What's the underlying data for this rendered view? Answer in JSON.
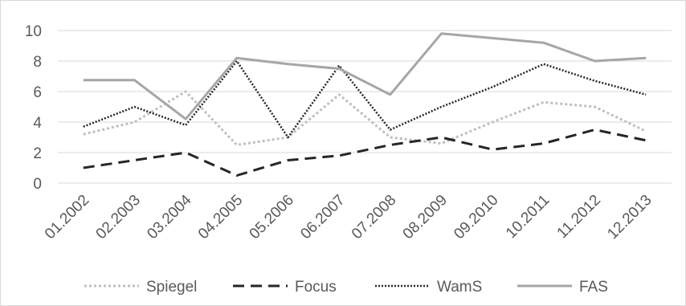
{
  "chart_data": {
    "type": "line",
    "title": "",
    "xlabel": "",
    "ylabel": "",
    "ylim": [
      0,
      10
    ],
    "yticks": [
      0,
      2,
      4,
      6,
      8,
      10
    ],
    "grid": "horizontal",
    "legend_position": "bottom",
    "categories": [
      "01.2002",
      "02.2003",
      "03.2004",
      "04.2005",
      "05.2006",
      "06.2007",
      "07.2008",
      "08.2009",
      "09.2010",
      "10.2011",
      "11.2012",
      "12.2013"
    ],
    "series": [
      {
        "name": "Spiegel",
        "color": "#bfbfbf",
        "style": "dotted",
        "values": [
          3.2,
          4.0,
          6.0,
          2.5,
          3.0,
          5.8,
          3.0,
          2.6,
          4.0,
          5.3,
          5.0,
          3.4
        ]
      },
      {
        "name": "Focus",
        "color": "#262626",
        "style": "dashed",
        "values": [
          1.0,
          1.5,
          2.0,
          0.5,
          1.5,
          1.8,
          2.5,
          3.0,
          2.2,
          2.6,
          3.5,
          2.8
        ]
      },
      {
        "name": "WamS",
        "color": "#262626",
        "style": "dotted-dense",
        "values": [
          3.7,
          5.0,
          3.8,
          8.0,
          3.0,
          7.7,
          3.5,
          5.0,
          6.3,
          7.8,
          6.7,
          5.8
        ]
      },
      {
        "name": "FAS",
        "color": "#a6a6a6",
        "style": "solid",
        "values": [
          6.75,
          6.75,
          4.2,
          8.2,
          7.8,
          7.5,
          5.8,
          9.8,
          9.5,
          9.2,
          8.0,
          8.2
        ]
      }
    ]
  }
}
